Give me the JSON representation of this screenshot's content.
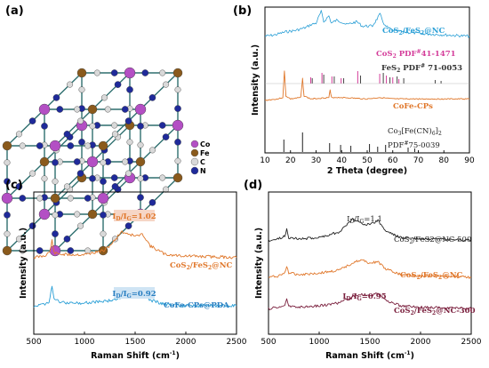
{
  "colors": {
    "co": "#b34fc4",
    "fe": "#8a5a1c",
    "c": "#d9d9d9",
    "n": "#1f2a9a",
    "bond": "#2e6f6f",
    "blue_series": "#2a9fd6",
    "pink_ref": "#d43d9a",
    "dark_ref": "#444444",
    "orange_series": "#e0772a",
    "black_series": "#222222",
    "maroon_series": "#7a1f3d",
    "ann_orange": "#e0772a",
    "ann_blue": "#2a7fc1",
    "ann_maroon": "#7a1f3d",
    "ann_bg_orange": "#f6d6c6",
    "ann_bg_blue": "#cfe4f4"
  },
  "panel_a": {
    "label": "(a)",
    "legend": [
      {
        "symbol": "Co",
        "color": "#b34fc4"
      },
      {
        "symbol": "Fe",
        "color": "#8a5a1c"
      },
      {
        "symbol": "C",
        "color": "#d9d9d9"
      },
      {
        "symbol": "N",
        "color": "#1f2a9a"
      }
    ]
  },
  "panel_b": {
    "label": "(b)"
  },
  "panel_c": {
    "label": "(c)"
  },
  "panel_d": {
    "label": "(d)"
  },
  "chart_data": [
    {
      "id": "b",
      "type": "line",
      "xlabel": "2 Theta (degree)",
      "ylabel": "Intensity (a.u.)",
      "xlim": [
        10,
        90
      ],
      "xticks": [
        10,
        20,
        30,
        40,
        50,
        60,
        70,
        80,
        90
      ],
      "series": [
        {
          "name": "CoS2/FeS2@NC",
          "color": "#2a9fd6",
          "points": [
            [
              10,
              0.8
            ],
            [
              14,
              0.81
            ],
            [
              18,
              0.83
            ],
            [
              22,
              0.84
            ],
            [
              26,
              0.86
            ],
            [
              28,
              0.88
            ],
            [
              30,
              0.89
            ],
            [
              32,
              0.97
            ],
            [
              33,
              0.9
            ],
            [
              35,
              0.94
            ],
            [
              36,
              0.89
            ],
            [
              38,
              0.91
            ],
            [
              40,
              0.9
            ],
            [
              42,
              0.88
            ],
            [
              46,
              0.9
            ],
            [
              48,
              0.87
            ],
            [
              52,
              0.87
            ],
            [
              55,
              0.95
            ],
            [
              57,
              0.87
            ],
            [
              60,
              0.84
            ],
            [
              64,
              0.83
            ],
            [
              70,
              0.82
            ],
            [
              80,
              0.81
            ],
            [
              90,
              0.8
            ]
          ]
        },
        {
          "name": "CoFe-CPs",
          "color": "#e0772a",
          "points": [
            [
              10,
              0.36
            ],
            [
              15,
              0.37
            ],
            [
              17,
              0.38
            ],
            [
              17.6,
              0.56
            ],
            [
              18.2,
              0.39
            ],
            [
              20,
              0.37
            ],
            [
              24,
              0.38
            ],
            [
              24.7,
              0.51
            ],
            [
              25.3,
              0.39
            ],
            [
              28,
              0.37
            ],
            [
              35,
              0.38
            ],
            [
              35.5,
              0.43
            ],
            [
              36,
              0.38
            ],
            [
              40,
              0.38
            ],
            [
              50,
              0.37
            ],
            [
              55,
              0.38
            ],
            [
              60,
              0.37
            ],
            [
              70,
              0.37
            ],
            [
              80,
              0.37
            ],
            [
              90,
              0.37
            ]
          ]
        }
      ],
      "reference_lines": [
        {
          "name": "CoS2 PDF#41-1471",
          "color": "#d43d9a",
          "x": [
            27.9,
            32.3,
            36.2,
            39.8,
            46.3,
            54.9,
            57.5,
            60.0,
            62.4
          ]
        },
        {
          "name": "FeS2 PDF# 71-0053",
          "color": "#444444",
          "x": [
            28.5,
            33.0,
            37.1,
            40.8,
            47.4,
            56.3,
            58.9,
            61.7,
            64.3,
            76.6,
            78.9
          ]
        },
        {
          "name": "Co3[Fe(CN)6]2 PDF#75-0039",
          "color": "#222222",
          "x": [
            17.4,
            24.7,
            35.3,
            39.6,
            43.6,
            50.9,
            54.1,
            57.2,
            66.0,
            68.6
          ]
        }
      ],
      "labels": [
        "CoS2/FeS2@NC",
        "CoS2 PDF#41-1471",
        "FeS2 PDF# 71-0053",
        "CoFe-CPs",
        "Co3[Fe(CN)6]2",
        "PDF#75-0039"
      ]
    },
    {
      "id": "c",
      "type": "line",
      "xlabel": "Raman Shift (cm",
      "xlabel_sup": "-1",
      "xlabel_end": ")",
      "ylabel": "Intensity (a.u.)",
      "xlim": [
        500,
        2500
      ],
      "xticks": [
        500,
        1000,
        1500,
        2000,
        2500
      ],
      "series": [
        {
          "name": "CoS2/FeS2@NC",
          "color": "#e0772a",
          "points": [
            [
              500,
              0.54
            ],
            [
              600,
              0.55
            ],
            [
              660,
              0.58
            ],
            [
              680,
              0.66
            ],
            [
              700,
              0.57
            ],
            [
              800,
              0.56
            ],
            [
              1000,
              0.56
            ],
            [
              1200,
              0.59
            ],
            [
              1300,
              0.66
            ],
            [
              1360,
              0.72
            ],
            [
              1420,
              0.71
            ],
            [
              1500,
              0.69
            ],
            [
              1580,
              0.7
            ],
            [
              1650,
              0.62
            ],
            [
              1800,
              0.56
            ],
            [
              2000,
              0.55
            ],
            [
              2500,
              0.54
            ]
          ]
        },
        {
          "name": "CoFe-CPs@PDA",
          "color": "#2a9fd6",
          "points": [
            [
              500,
              0.2
            ],
            [
              600,
              0.21
            ],
            [
              650,
              0.23
            ],
            [
              680,
              0.34
            ],
            [
              700,
              0.24
            ],
            [
              800,
              0.22
            ],
            [
              1000,
              0.22
            ],
            [
              1300,
              0.24
            ],
            [
              1400,
              0.27
            ],
            [
              1500,
              0.26
            ],
            [
              1580,
              0.27
            ],
            [
              1650,
              0.24
            ],
            [
              1800,
              0.21
            ],
            [
              2000,
              0.2
            ],
            [
              2500,
              0.2
            ]
          ]
        }
      ],
      "annotations": [
        {
          "text": "I_D/I_G=1.02",
          "color": "#e0772a"
        },
        {
          "text": "I_D/I_G=0.92",
          "color": "#2a7fc1"
        }
      ]
    },
    {
      "id": "d",
      "type": "line",
      "xlabel": "Raman Shift (cm",
      "xlabel_sup": "-1",
      "xlabel_end": ")",
      "ylabel": "Intensity (a.u.)",
      "xlim": [
        500,
        2500
      ],
      "xticks": [
        500,
        1000,
        1500,
        2000,
        2500
      ],
      "series": [
        {
          "name": "CoS2/FeS2@NC-500",
          "color": "#222222",
          "points": [
            [
              500,
              0.66
            ],
            [
              600,
              0.67
            ],
            [
              660,
              0.69
            ],
            [
              680,
              0.74
            ],
            [
              700,
              0.68
            ],
            [
              800,
              0.67
            ],
            [
              1000,
              0.68
            ],
            [
              1200,
              0.72
            ],
            [
              1330,
              0.81
            ],
            [
              1420,
              0.78
            ],
            [
              1500,
              0.77
            ],
            [
              1580,
              0.8
            ],
            [
              1650,
              0.73
            ],
            [
              1800,
              0.68
            ],
            [
              2000,
              0.67
            ],
            [
              2500,
              0.66
            ]
          ]
        },
        {
          "name": "CoS2/FeS2@NC",
          "color": "#e0772a",
          "points": [
            [
              500,
              0.4
            ],
            [
              600,
              0.41
            ],
            [
              660,
              0.43
            ],
            [
              680,
              0.48
            ],
            [
              700,
              0.43
            ],
            [
              800,
              0.42
            ],
            [
              1000,
              0.43
            ],
            [
              1200,
              0.45
            ],
            [
              1350,
              0.51
            ],
            [
              1420,
              0.52
            ],
            [
              1500,
              0.5
            ],
            [
              1580,
              0.51
            ],
            [
              1650,
              0.46
            ],
            [
              1800,
              0.42
            ],
            [
              2000,
              0.41
            ],
            [
              2500,
              0.4
            ]
          ]
        },
        {
          "name": "CoS2/FeS2@NC-300",
          "color": "#7a1f3d",
          "points": [
            [
              500,
              0.18
            ],
            [
              600,
              0.19
            ],
            [
              660,
              0.2
            ],
            [
              680,
              0.25
            ],
            [
              700,
              0.2
            ],
            [
              800,
              0.19
            ],
            [
              1000,
              0.2
            ],
            [
              1200,
              0.22
            ],
            [
              1350,
              0.27
            ],
            [
              1420,
              0.28
            ],
            [
              1500,
              0.27
            ],
            [
              1580,
              0.29
            ],
            [
              1650,
              0.24
            ],
            [
              1800,
              0.2
            ],
            [
              2000,
              0.19
            ],
            [
              2500,
              0.18
            ]
          ]
        }
      ],
      "annotations": [
        {
          "text": "I_D/I_G=1.1",
          "color": "#222222"
        },
        {
          "text": "I_D/I_G=0.95",
          "color": "#7a1f3d"
        }
      ]
    }
  ]
}
